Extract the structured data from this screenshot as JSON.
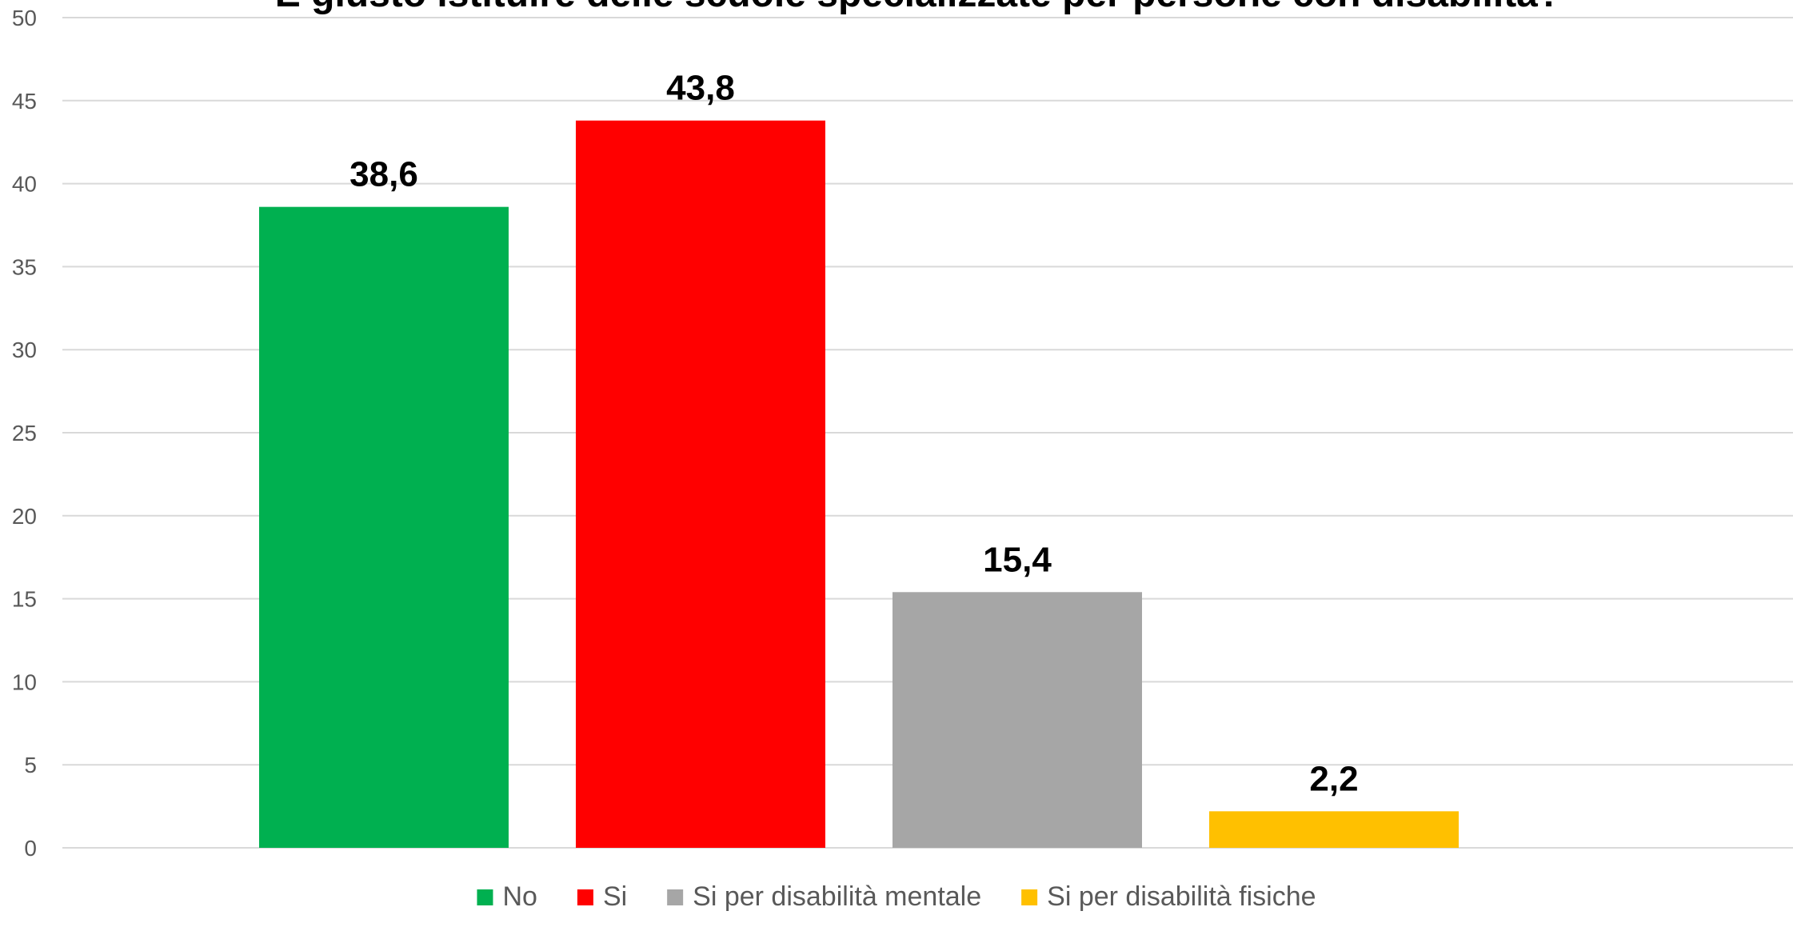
{
  "chart_data": {
    "type": "bar",
    "title": "È giusto istituire delle scuole specializzate per persone con disabilità?",
    "categories": [
      "No",
      "Si",
      "Si per disabilità mentale",
      "Si per disabilità fisiche"
    ],
    "series": [
      {
        "values": [
          38.6,
          43.8,
          15.4,
          2.2
        ],
        "data_labels": [
          "38,6",
          "43,8",
          "15,4",
          "2,2"
        ]
      }
    ],
    "colors": [
      "#00B050",
      "#FF0000",
      "#A6A6A6",
      "#FFC000"
    ],
    "ylim": [
      0,
      50
    ],
    "yticks": [
      0,
      5,
      10,
      15,
      20,
      25,
      30,
      35,
      40,
      45,
      50
    ],
    "grid": true,
    "legend_position": "bottom",
    "xlabel": "",
    "ylabel": ""
  }
}
